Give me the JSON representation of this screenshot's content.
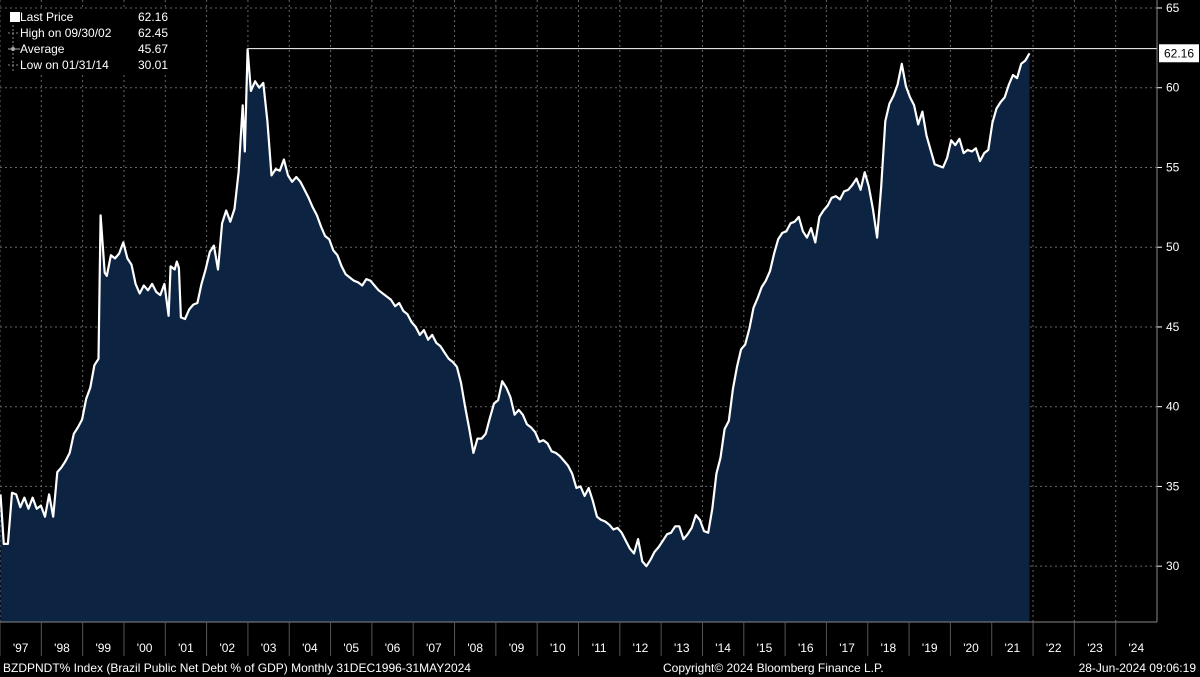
{
  "chart_data": {
    "type": "area",
    "x_ticks": [
      "'97",
      "'98",
      "'99",
      "'00",
      "'01",
      "'02",
      "'03",
      "'04",
      "'05",
      "'06",
      "'07",
      "'08",
      "'09",
      "'10",
      "'11",
      "'12",
      "'13",
      "'14",
      "'15",
      "'16",
      "'17",
      "'18",
      "'19",
      "'20",
      "'21",
      "'22",
      "'23",
      "'24"
    ],
    "y_ticks": [
      30,
      35,
      40,
      45,
      50,
      55,
      60,
      65
    ],
    "ylim": [
      26.5,
      65.5
    ],
    "grid": true,
    "grid_style": "dotted",
    "reference_line": 62.45,
    "last_value_label": "62.16",
    "colors": {
      "line": "#ffffff",
      "fill": "#0c2341",
      "background": "#000000",
      "grid": "#666666"
    },
    "series": [
      {
        "values": [
          [
            1996.92,
            34.5
          ],
          [
            1997.0,
            31.4
          ],
          [
            1997.1,
            31.4
          ],
          [
            1997.2,
            34.6
          ],
          [
            1997.3,
            34.5
          ],
          [
            1997.4,
            33.7
          ],
          [
            1997.5,
            34.3
          ],
          [
            1997.6,
            33.6
          ],
          [
            1997.7,
            34.3
          ],
          [
            1997.8,
            33.6
          ],
          [
            1997.9,
            33.8
          ],
          [
            1998.0,
            33.1
          ],
          [
            1998.1,
            34.5
          ],
          [
            1998.2,
            33.1
          ],
          [
            1998.3,
            35.9
          ],
          [
            1998.4,
            36.2
          ],
          [
            1998.5,
            36.6
          ],
          [
            1998.6,
            37.1
          ],
          [
            1998.7,
            38.3
          ],
          [
            1998.8,
            38.7
          ],
          [
            1998.9,
            39.2
          ],
          [
            1999.0,
            40.5
          ],
          [
            1999.1,
            41.2
          ],
          [
            1999.2,
            42.6
          ],
          [
            1999.3,
            43.0
          ],
          [
            1999.35,
            52.0
          ],
          [
            1999.45,
            48.4
          ],
          [
            1999.5,
            48.2
          ],
          [
            1999.6,
            49.5
          ],
          [
            1999.7,
            49.3
          ],
          [
            1999.8,
            49.6
          ],
          [
            1999.9,
            50.3
          ],
          [
            2000.0,
            49.3
          ],
          [
            2000.1,
            48.9
          ],
          [
            2000.2,
            47.7
          ],
          [
            2000.3,
            47.1
          ],
          [
            2000.4,
            47.6
          ],
          [
            2000.5,
            47.3
          ],
          [
            2000.6,
            47.7
          ],
          [
            2000.7,
            47.2
          ],
          [
            2000.8,
            47.0
          ],
          [
            2000.9,
            47.7
          ],
          [
            2001.0,
            45.7
          ],
          [
            2001.05,
            48.8
          ],
          [
            2001.15,
            48.6
          ],
          [
            2001.2,
            49.1
          ],
          [
            2001.25,
            48.7
          ],
          [
            2001.3,
            45.6
          ],
          [
            2001.4,
            45.5
          ],
          [
            2001.5,
            46.1
          ],
          [
            2001.6,
            46.4
          ],
          [
            2001.7,
            46.5
          ],
          [
            2001.8,
            47.7
          ],
          [
            2001.9,
            48.6
          ],
          [
            2002.0,
            49.7
          ],
          [
            2002.1,
            50.1
          ],
          [
            2002.2,
            48.6
          ],
          [
            2002.3,
            51.5
          ],
          [
            2002.4,
            52.3
          ],
          [
            2002.5,
            51.6
          ],
          [
            2002.6,
            52.4
          ],
          [
            2002.7,
            54.7
          ],
          [
            2002.8,
            58.9
          ],
          [
            2002.85,
            56.0
          ],
          [
            2002.92,
            62.4
          ],
          [
            2003.0,
            59.8
          ],
          [
            2003.1,
            60.4
          ],
          [
            2003.2,
            60.0
          ],
          [
            2003.3,
            60.3
          ],
          [
            2003.4,
            57.9
          ],
          [
            2003.5,
            54.5
          ],
          [
            2003.6,
            54.9
          ],
          [
            2003.7,
            54.8
          ],
          [
            2003.8,
            55.5
          ],
          [
            2003.9,
            54.5
          ],
          [
            2004.0,
            54.1
          ],
          [
            2004.1,
            54.4
          ],
          [
            2004.2,
            54.1
          ],
          [
            2004.3,
            53.6
          ],
          [
            2004.4,
            53.1
          ],
          [
            2004.5,
            52.5
          ],
          [
            2004.6,
            52.0
          ],
          [
            2004.7,
            51.3
          ],
          [
            2004.8,
            50.7
          ],
          [
            2004.9,
            50.5
          ],
          [
            2005.0,
            49.8
          ],
          [
            2005.1,
            49.5
          ],
          [
            2005.2,
            48.8
          ],
          [
            2005.3,
            48.3
          ],
          [
            2005.4,
            48.1
          ],
          [
            2005.5,
            47.9
          ],
          [
            2005.6,
            47.8
          ],
          [
            2005.7,
            47.6
          ],
          [
            2005.8,
            48.0
          ],
          [
            2005.9,
            47.9
          ],
          [
            2006.0,
            47.6
          ],
          [
            2006.1,
            47.3
          ],
          [
            2006.2,
            47.1
          ],
          [
            2006.3,
            46.9
          ],
          [
            2006.4,
            46.7
          ],
          [
            2006.5,
            46.3
          ],
          [
            2006.6,
            46.5
          ],
          [
            2006.7,
            46.0
          ],
          [
            2006.8,
            45.8
          ],
          [
            2006.9,
            45.3
          ],
          [
            2007.0,
            45.0
          ],
          [
            2007.1,
            44.5
          ],
          [
            2007.2,
            44.8
          ],
          [
            2007.3,
            44.2
          ],
          [
            2007.4,
            44.5
          ],
          [
            2007.5,
            44.0
          ],
          [
            2007.6,
            43.8
          ],
          [
            2007.7,
            43.4
          ],
          [
            2007.8,
            43.0
          ],
          [
            2007.9,
            42.8
          ],
          [
            2008.0,
            42.5
          ],
          [
            2008.1,
            41.5
          ],
          [
            2008.2,
            40.0
          ],
          [
            2008.3,
            38.6
          ],
          [
            2008.4,
            37.1
          ],
          [
            2008.5,
            38.0
          ],
          [
            2008.6,
            38.0
          ],
          [
            2008.7,
            38.3
          ],
          [
            2008.8,
            39.3
          ],
          [
            2008.9,
            40.2
          ],
          [
            2009.0,
            40.4
          ],
          [
            2009.1,
            41.6
          ],
          [
            2009.2,
            41.2
          ],
          [
            2009.3,
            40.6
          ],
          [
            2009.4,
            39.5
          ],
          [
            2009.5,
            39.8
          ],
          [
            2009.6,
            39.5
          ],
          [
            2009.7,
            38.9
          ],
          [
            2009.8,
            38.7
          ],
          [
            2009.9,
            38.4
          ],
          [
            2010.0,
            37.8
          ],
          [
            2010.1,
            37.9
          ],
          [
            2010.2,
            37.7
          ],
          [
            2010.3,
            37.2
          ],
          [
            2010.4,
            37.1
          ],
          [
            2010.5,
            36.9
          ],
          [
            2010.6,
            36.6
          ],
          [
            2010.7,
            36.3
          ],
          [
            2010.8,
            35.8
          ],
          [
            2010.9,
            34.9
          ],
          [
            2011.0,
            35.0
          ],
          [
            2011.1,
            34.4
          ],
          [
            2011.2,
            34.9
          ],
          [
            2011.3,
            34.1
          ],
          [
            2011.4,
            33.1
          ],
          [
            2011.5,
            32.9
          ],
          [
            2011.6,
            32.8
          ],
          [
            2011.7,
            32.6
          ],
          [
            2011.8,
            32.3
          ],
          [
            2011.9,
            32.4
          ],
          [
            2012.0,
            32.1
          ],
          [
            2012.1,
            31.6
          ],
          [
            2012.2,
            31.1
          ],
          [
            2012.3,
            30.8
          ],
          [
            2012.4,
            31.7
          ],
          [
            2012.5,
            30.3
          ],
          [
            2012.6,
            30.0
          ],
          [
            2012.7,
            30.4
          ],
          [
            2012.8,
            30.9
          ],
          [
            2012.9,
            31.2
          ],
          [
            2013.0,
            31.6
          ],
          [
            2013.1,
            32.0
          ],
          [
            2013.2,
            32.1
          ],
          [
            2013.3,
            32.5
          ],
          [
            2013.4,
            32.5
          ],
          [
            2013.5,
            31.7
          ],
          [
            2013.6,
            32.0
          ],
          [
            2013.7,
            32.4
          ],
          [
            2013.8,
            33.2
          ],
          [
            2013.9,
            32.9
          ],
          [
            2014.0,
            32.2
          ],
          [
            2014.1,
            32.1
          ],
          [
            2014.2,
            33.6
          ],
          [
            2014.3,
            35.8
          ],
          [
            2014.4,
            36.8
          ],
          [
            2014.5,
            38.6
          ],
          [
            2014.6,
            39.1
          ],
          [
            2014.7,
            41.1
          ],
          [
            2014.8,
            42.5
          ],
          [
            2014.9,
            43.6
          ],
          [
            2015.0,
            43.9
          ],
          [
            2015.1,
            44.9
          ],
          [
            2015.2,
            46.2
          ],
          [
            2015.3,
            46.8
          ],
          [
            2015.4,
            47.5
          ],
          [
            2015.5,
            47.9
          ],
          [
            2015.6,
            48.5
          ],
          [
            2015.7,
            49.6
          ],
          [
            2015.8,
            50.5
          ],
          [
            2015.9,
            50.9
          ],
          [
            2016.0,
            51.0
          ],
          [
            2016.1,
            51.5
          ],
          [
            2016.2,
            51.6
          ],
          [
            2016.3,
            51.9
          ],
          [
            2016.4,
            51.0
          ],
          [
            2016.5,
            50.6
          ],
          [
            2016.6,
            51.2
          ],
          [
            2016.7,
            50.3
          ],
          [
            2016.8,
            51.9
          ],
          [
            2016.9,
            52.3
          ],
          [
            2017.0,
            52.6
          ],
          [
            2017.1,
            53.1
          ],
          [
            2017.2,
            53.2
          ],
          [
            2017.3,
            53.0
          ],
          [
            2017.4,
            53.5
          ],
          [
            2017.5,
            53.6
          ],
          [
            2017.6,
            53.9
          ],
          [
            2017.7,
            54.3
          ],
          [
            2017.8,
            53.6
          ],
          [
            2017.9,
            54.7
          ],
          [
            2018.0,
            53.8
          ],
          [
            2018.1,
            52.4
          ],
          [
            2018.2,
            50.6
          ],
          [
            2018.3,
            53.8
          ],
          [
            2018.4,
            57.9
          ],
          [
            2018.5,
            59.0
          ],
          [
            2018.6,
            59.5
          ],
          [
            2018.7,
            60.2
          ],
          [
            2018.8,
            61.5
          ],
          [
            2018.9,
            60.1
          ],
          [
            2019.0,
            59.4
          ],
          [
            2019.1,
            58.9
          ],
          [
            2019.2,
            57.7
          ],
          [
            2019.3,
            58.5
          ],
          [
            2019.4,
            57.0
          ],
          [
            2019.5,
            56.1
          ],
          [
            2019.6,
            55.2
          ],
          [
            2019.7,
            55.1
          ],
          [
            2019.8,
            55.0
          ],
          [
            2019.9,
            55.6
          ],
          [
            2020.0,
            56.7
          ],
          [
            2020.1,
            56.4
          ],
          [
            2020.2,
            56.8
          ],
          [
            2020.3,
            55.9
          ],
          [
            2020.4,
            56.1
          ],
          [
            2020.5,
            56.0
          ],
          [
            2020.6,
            56.2
          ],
          [
            2020.7,
            55.4
          ],
          [
            2020.8,
            55.9
          ],
          [
            2020.9,
            56.1
          ],
          [
            2021.0,
            57.8
          ],
          [
            2021.1,
            58.7
          ],
          [
            2021.2,
            59.1
          ],
          [
            2021.3,
            59.4
          ],
          [
            2021.4,
            60.2
          ],
          [
            2021.5,
            60.8
          ],
          [
            2021.6,
            60.6
          ],
          [
            2021.7,
            61.5
          ],
          [
            2021.8,
            61.7
          ],
          [
            2021.9,
            62.16
          ]
        ]
      }
    ],
    "legend": [
      {
        "icon": "square-icon",
        "label": "Last Price",
        "value": "62.16"
      },
      {
        "icon": "high-marker-icon",
        "label": "High on 09/30/02",
        "value": "62.45"
      },
      {
        "icon": "average-marker-icon",
        "label": "Average",
        "value": "45.67"
      },
      {
        "icon": "low-marker-icon",
        "label": "Low on 01/31/14",
        "value": "30.01"
      }
    ]
  },
  "footer": {
    "left": "BZDPNDT% Index (Brazil Public Net Debt % of GDP)  Monthly 31DEC1996-31MAY2024",
    "center": "Copyright© 2024 Bloomberg Finance L.P.",
    "right": "28-Jun-2024 09:06:19"
  }
}
